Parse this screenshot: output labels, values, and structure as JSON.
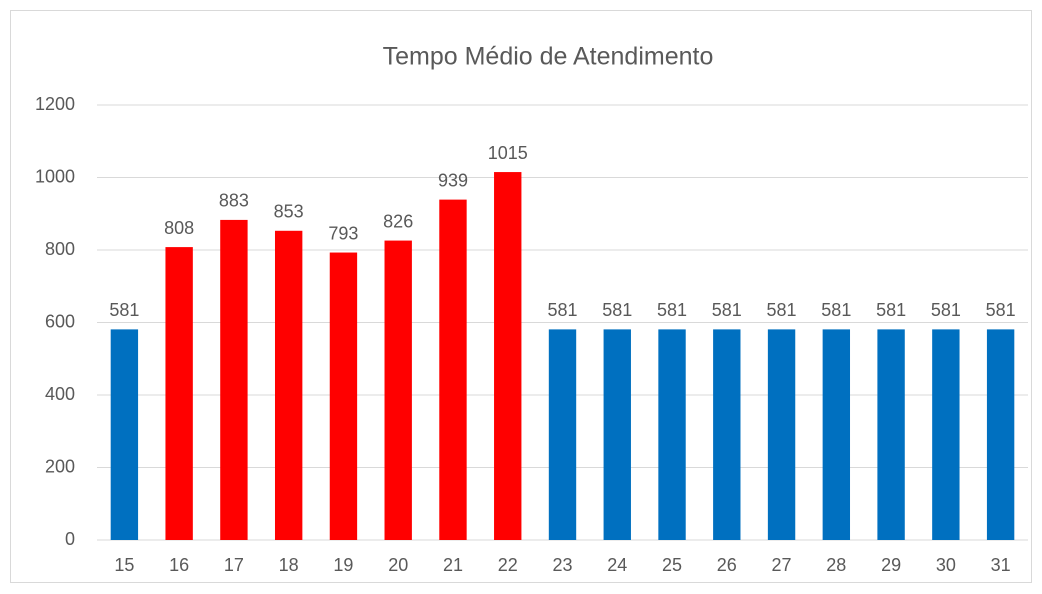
{
  "chart_data": {
    "type": "bar",
    "title": "Tempo Médio de Atendimento",
    "categories": [
      "15",
      "16",
      "17",
      "18",
      "19",
      "20",
      "21",
      "22",
      "23",
      "24",
      "25",
      "26",
      "27",
      "28",
      "29",
      "30",
      "31"
    ],
    "values": [
      581,
      808,
      883,
      853,
      793,
      826,
      939,
      1015,
      581,
      581,
      581,
      581,
      581,
      581,
      581,
      581,
      581
    ],
    "colors": [
      "#0070c0",
      "#ff0000",
      "#ff0000",
      "#ff0000",
      "#ff0000",
      "#ff0000",
      "#ff0000",
      "#ff0000",
      "#0070c0",
      "#0070c0",
      "#0070c0",
      "#0070c0",
      "#0070c0",
      "#0070c0",
      "#0070c0",
      "#0070c0",
      "#0070c0"
    ],
    "ylim": [
      0,
      1200
    ],
    "yticks": [
      0,
      200,
      400,
      600,
      800,
      1000,
      1200
    ],
    "grid": true
  }
}
